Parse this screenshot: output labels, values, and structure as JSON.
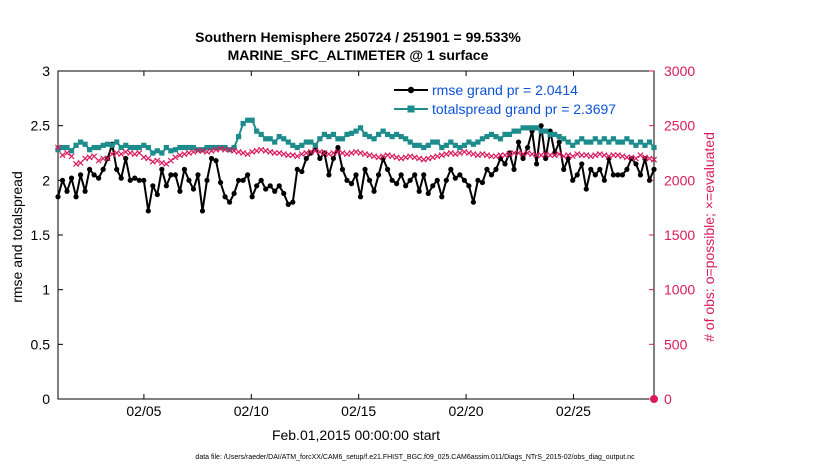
{
  "chart_data": {
    "type": "line",
    "title": "Southern Hemisphere 250724 / 251901 = 99.533%",
    "subtitle": "MARINE_SFC_ALTIMETER @ 1 surface",
    "xlabel": "Feb.01,2015 00:00:00 start",
    "ylabel_left": "rmse and totalspread",
    "ylabel_right": "# of obs: o=possible; ×=evaluated",
    "footnote": "data file: /Users/raeder/DAI/ATM_forcXX/CAM6_setup/f.e21.FHIST_BGC.f09_025.CAM6assim.011/Diags_NTrS_2015-02/obs_diag_output.nc",
    "x_unit": "day of February 2015 (1 = Feb 01 00:00)",
    "xlim": [
      1,
      28.75
    ],
    "x_tick_values": [
      5,
      10,
      15,
      20,
      25
    ],
    "x_tick_labels": [
      "02/05",
      "02/10",
      "02/15",
      "02/20",
      "02/25"
    ],
    "ylim_left": [
      0,
      3
    ],
    "y_ticks_left": [
      "0",
      "0.5",
      "1",
      "1.5",
      "2",
      "2.5",
      "3"
    ],
    "ylim_right": [
      0,
      3000
    ],
    "y_ticks_right": [
      "0",
      "500",
      "1000",
      "1500",
      "2000",
      "2500",
      "3000"
    ],
    "grid": false,
    "legend_position": "top-right",
    "series": [
      {
        "name": "rmse",
        "legend": "rmse grand pr = 2.0414",
        "axis": "left",
        "color": "#000000",
        "marker": "filled-circle",
        "values": [
          1.85,
          2.0,
          1.9,
          2.02,
          1.85,
          2.05,
          1.9,
          2.1,
          2.05,
          2.02,
          2.1,
          2.2,
          2.33,
          2.1,
          2.02,
          2.2,
          2.0,
          2.02,
          2.0,
          2.0,
          1.72,
          1.95,
          1.87,
          2.1,
          1.95,
          2.05,
          2.05,
          1.9,
          2.1,
          2.0,
          1.92,
          2.05,
          1.72,
          2.0,
          2.2,
          2.18,
          1.98,
          1.85,
          1.8,
          1.88,
          2.0,
          2.0,
          2.05,
          1.85,
          1.95,
          2.0,
          1.92,
          1.95,
          1.9,
          1.95,
          1.88,
          1.78,
          1.8,
          2.1,
          2.08,
          2.2,
          2.25,
          2.3,
          2.2,
          2.25,
          2.05,
          2.2,
          2.3,
          2.1,
          2.0,
          1.97,
          2.05,
          1.85,
          2.1,
          2.0,
          1.9,
          2.05,
          2.2,
          2.1,
          2.0,
          1.97,
          2.05,
          1.95,
          2.0,
          2.05,
          1.9,
          2.05,
          1.88,
          1.95,
          2.0,
          1.85,
          2.0,
          2.1,
          2.02,
          2.05,
          2.0,
          1.95,
          1.8,
          2.0,
          1.98,
          2.1,
          2.05,
          2.1,
          2.2,
          2.15,
          2.25,
          2.1,
          2.35,
          2.2,
          2.3,
          2.45,
          2.15,
          2.5,
          2.2,
          2.45,
          2.25,
          2.35,
          2.1,
          2.2,
          2.0,
          2.05,
          2.15,
          1.92,
          2.1,
          2.05,
          2.1,
          2.0,
          2.2,
          2.05,
          2.05,
          2.05,
          2.1,
          2.2,
          2.15,
          2.05,
          2.2,
          2.0,
          2.1
        ]
      },
      {
        "name": "totalspread",
        "legend": "totalspread grand pr = 2.3697",
        "axis": "left",
        "color": "#1e8c8c",
        "marker": "filled-square",
        "values": [
          2.28,
          2.3,
          2.3,
          2.27,
          2.32,
          2.35,
          2.33,
          2.28,
          2.3,
          2.3,
          2.32,
          2.33,
          2.32,
          2.35,
          2.3,
          2.32,
          2.3,
          2.3,
          2.3,
          2.32,
          2.3,
          2.25,
          2.27,
          2.25,
          2.3,
          2.27,
          2.28,
          2.3,
          2.3,
          2.3,
          2.3,
          2.28,
          2.28,
          2.3,
          2.3,
          2.3,
          2.3,
          2.3,
          2.28,
          2.3,
          2.4,
          2.52,
          2.55,
          2.55,
          2.45,
          2.42,
          2.38,
          2.38,
          2.35,
          2.4,
          2.38,
          2.35,
          2.32,
          2.3,
          2.32,
          2.35,
          2.35,
          2.32,
          2.38,
          2.42,
          2.4,
          2.42,
          2.38,
          2.38,
          2.42,
          2.43,
          2.45,
          2.48,
          2.42,
          2.4,
          2.38,
          2.42,
          2.45,
          2.42,
          2.4,
          2.42,
          2.4,
          2.38,
          2.35,
          2.32,
          2.32,
          2.3,
          2.32,
          2.35,
          2.35,
          2.3,
          2.32,
          2.35,
          2.32,
          2.3,
          2.32,
          2.35,
          2.33,
          2.35,
          2.38,
          2.4,
          2.42,
          2.4,
          2.38,
          2.42,
          2.42,
          2.45,
          2.45,
          2.48,
          2.48,
          2.48,
          2.48,
          2.45,
          2.45,
          2.42,
          2.42,
          2.4,
          2.38,
          2.35,
          2.32,
          2.35,
          2.38,
          2.35,
          2.35,
          2.38,
          2.35,
          2.38,
          2.35,
          2.38,
          2.35,
          2.35,
          2.38,
          2.35,
          2.32,
          2.35,
          2.32,
          2.35,
          2.3
        ]
      },
      {
        "name": "# of obs evaluated",
        "axis": "right",
        "color": "#d91a5c",
        "marker": "cross",
        "values": [
          2300,
          2230,
          2250,
          2220,
          2150,
          2160,
          2200,
          2210,
          2220,
          2180,
          2200,
          2200,
          2240,
          2250,
          2240,
          2260,
          2250,
          2240,
          2250,
          2210,
          2200,
          2170,
          2180,
          2160,
          2150,
          2180,
          2210,
          2230,
          2240,
          2250,
          2260,
          2270,
          2270,
          2260,
          2270,
          2280,
          2290,
          2280,
          2280,
          2270,
          2260,
          2250,
          2240,
          2260,
          2270,
          2280,
          2270,
          2260,
          2250,
          2250,
          2240,
          2230,
          2230,
          2220,
          2240,
          2250,
          2260,
          2270,
          2260,
          2250,
          2240,
          2250,
          2260,
          2250,
          2240,
          2250,
          2260,
          2250,
          2240,
          2230,
          2220,
          2210,
          2220,
          2230,
          2220,
          2210,
          2200,
          2210,
          2220,
          2210,
          2200,
          2190,
          2200,
          2210,
          2220,
          2230,
          2240,
          2250,
          2240,
          2250,
          2260,
          2250,
          2240,
          2230,
          2240,
          2230,
          2220,
          2220,
          2230,
          2230,
          2240,
          2250,
          2250,
          2240,
          2250,
          2240,
          2230,
          2230,
          2240,
          2230,
          2230,
          2240,
          2220,
          2230,
          2220,
          2240,
          2230,
          2230,
          2220,
          2230,
          2240,
          2230,
          2220,
          2230,
          2230,
          2220,
          2210,
          2210,
          2200,
          2230,
          2210,
          2200,
          2190
        ]
      },
      {
        "name": "# of obs possible",
        "axis": "right",
        "color": "#d91a5c",
        "marker": "circle",
        "note": "single visible marker at the end of the time axis, value 0",
        "x": [
          28.75
        ],
        "values": [
          0
        ]
      }
    ]
  }
}
